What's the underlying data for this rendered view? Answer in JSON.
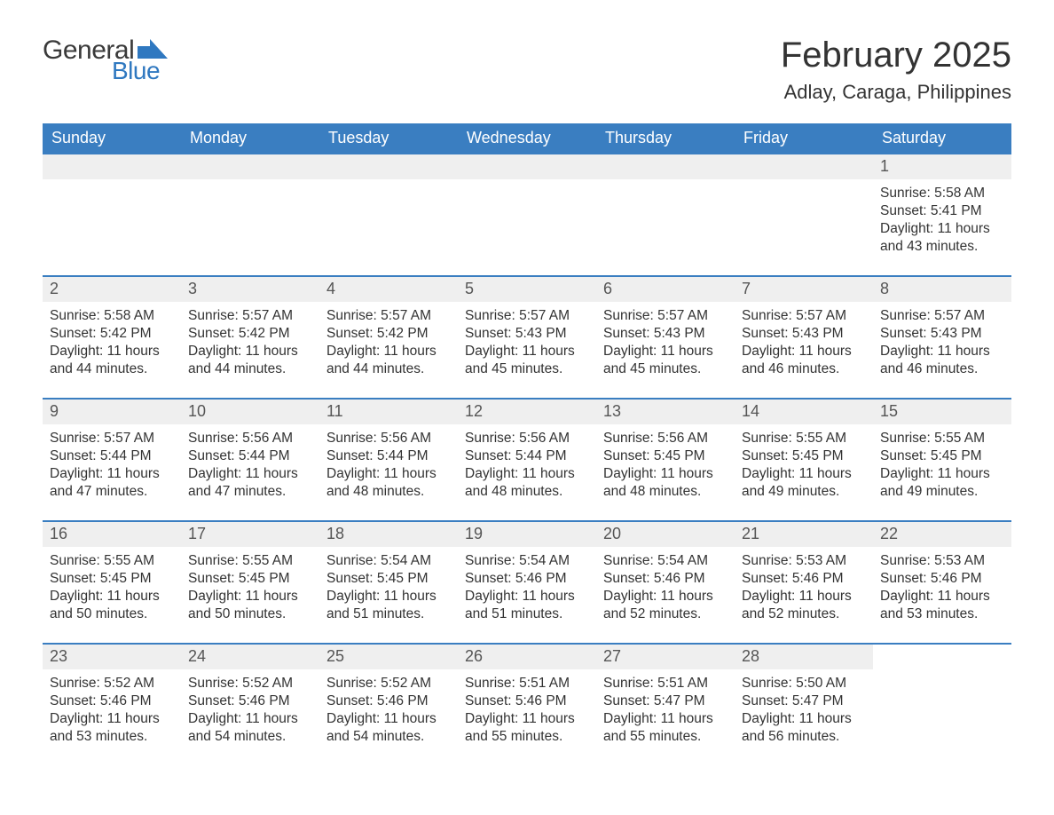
{
  "logo": {
    "text_general": "General",
    "text_blue": "Blue",
    "shape_color": "#2f78c0",
    "text_general_color": "#3a3a3a"
  },
  "header": {
    "month_title": "February 2025",
    "location": "Adlay, Caraga, Philippines"
  },
  "colors": {
    "header_bg": "#3a7ec1",
    "header_text": "#ffffff",
    "daynum_bg": "#efefef",
    "row_border": "#3a7ec1",
    "body_text": "#333333",
    "background": "#ffffff"
  },
  "typography": {
    "title_fontsize": 40,
    "location_fontsize": 22,
    "weekday_fontsize": 18,
    "daynum_fontsize": 18,
    "content_fontsize": 15.5,
    "font_family": "Arial"
  },
  "calendar": {
    "type": "table",
    "weekdays": [
      "Sunday",
      "Monday",
      "Tuesday",
      "Wednesday",
      "Thursday",
      "Friday",
      "Saturday"
    ],
    "weeks": [
      [
        {
          "empty": true
        },
        {
          "empty": true
        },
        {
          "empty": true
        },
        {
          "empty": true
        },
        {
          "empty": true
        },
        {
          "empty": true
        },
        {
          "day": "1",
          "sunrise": "Sunrise: 5:58 AM",
          "sunset": "Sunset: 5:41 PM",
          "daylight1": "Daylight: 11 hours",
          "daylight2": "and 43 minutes."
        }
      ],
      [
        {
          "day": "2",
          "sunrise": "Sunrise: 5:58 AM",
          "sunset": "Sunset: 5:42 PM",
          "daylight1": "Daylight: 11 hours",
          "daylight2": "and 44 minutes."
        },
        {
          "day": "3",
          "sunrise": "Sunrise: 5:57 AM",
          "sunset": "Sunset: 5:42 PM",
          "daylight1": "Daylight: 11 hours",
          "daylight2": "and 44 minutes."
        },
        {
          "day": "4",
          "sunrise": "Sunrise: 5:57 AM",
          "sunset": "Sunset: 5:42 PM",
          "daylight1": "Daylight: 11 hours",
          "daylight2": "and 44 minutes."
        },
        {
          "day": "5",
          "sunrise": "Sunrise: 5:57 AM",
          "sunset": "Sunset: 5:43 PM",
          "daylight1": "Daylight: 11 hours",
          "daylight2": "and 45 minutes."
        },
        {
          "day": "6",
          "sunrise": "Sunrise: 5:57 AM",
          "sunset": "Sunset: 5:43 PM",
          "daylight1": "Daylight: 11 hours",
          "daylight2": "and 45 minutes."
        },
        {
          "day": "7",
          "sunrise": "Sunrise: 5:57 AM",
          "sunset": "Sunset: 5:43 PM",
          "daylight1": "Daylight: 11 hours",
          "daylight2": "and 46 minutes."
        },
        {
          "day": "8",
          "sunrise": "Sunrise: 5:57 AM",
          "sunset": "Sunset: 5:43 PM",
          "daylight1": "Daylight: 11 hours",
          "daylight2": "and 46 minutes."
        }
      ],
      [
        {
          "day": "9",
          "sunrise": "Sunrise: 5:57 AM",
          "sunset": "Sunset: 5:44 PM",
          "daylight1": "Daylight: 11 hours",
          "daylight2": "and 47 minutes."
        },
        {
          "day": "10",
          "sunrise": "Sunrise: 5:56 AM",
          "sunset": "Sunset: 5:44 PM",
          "daylight1": "Daylight: 11 hours",
          "daylight2": "and 47 minutes."
        },
        {
          "day": "11",
          "sunrise": "Sunrise: 5:56 AM",
          "sunset": "Sunset: 5:44 PM",
          "daylight1": "Daylight: 11 hours",
          "daylight2": "and 48 minutes."
        },
        {
          "day": "12",
          "sunrise": "Sunrise: 5:56 AM",
          "sunset": "Sunset: 5:44 PM",
          "daylight1": "Daylight: 11 hours",
          "daylight2": "and 48 minutes."
        },
        {
          "day": "13",
          "sunrise": "Sunrise: 5:56 AM",
          "sunset": "Sunset: 5:45 PM",
          "daylight1": "Daylight: 11 hours",
          "daylight2": "and 48 minutes."
        },
        {
          "day": "14",
          "sunrise": "Sunrise: 5:55 AM",
          "sunset": "Sunset: 5:45 PM",
          "daylight1": "Daylight: 11 hours",
          "daylight2": "and 49 minutes."
        },
        {
          "day": "15",
          "sunrise": "Sunrise: 5:55 AM",
          "sunset": "Sunset: 5:45 PM",
          "daylight1": "Daylight: 11 hours",
          "daylight2": "and 49 minutes."
        }
      ],
      [
        {
          "day": "16",
          "sunrise": "Sunrise: 5:55 AM",
          "sunset": "Sunset: 5:45 PM",
          "daylight1": "Daylight: 11 hours",
          "daylight2": "and 50 minutes."
        },
        {
          "day": "17",
          "sunrise": "Sunrise: 5:55 AM",
          "sunset": "Sunset: 5:45 PM",
          "daylight1": "Daylight: 11 hours",
          "daylight2": "and 50 minutes."
        },
        {
          "day": "18",
          "sunrise": "Sunrise: 5:54 AM",
          "sunset": "Sunset: 5:45 PM",
          "daylight1": "Daylight: 11 hours",
          "daylight2": "and 51 minutes."
        },
        {
          "day": "19",
          "sunrise": "Sunrise: 5:54 AM",
          "sunset": "Sunset: 5:46 PM",
          "daylight1": "Daylight: 11 hours",
          "daylight2": "and 51 minutes."
        },
        {
          "day": "20",
          "sunrise": "Sunrise: 5:54 AM",
          "sunset": "Sunset: 5:46 PM",
          "daylight1": "Daylight: 11 hours",
          "daylight2": "and 52 minutes."
        },
        {
          "day": "21",
          "sunrise": "Sunrise: 5:53 AM",
          "sunset": "Sunset: 5:46 PM",
          "daylight1": "Daylight: 11 hours",
          "daylight2": "and 52 minutes."
        },
        {
          "day": "22",
          "sunrise": "Sunrise: 5:53 AM",
          "sunset": "Sunset: 5:46 PM",
          "daylight1": "Daylight: 11 hours",
          "daylight2": "and 53 minutes."
        }
      ],
      [
        {
          "day": "23",
          "sunrise": "Sunrise: 5:52 AM",
          "sunset": "Sunset: 5:46 PM",
          "daylight1": "Daylight: 11 hours",
          "daylight2": "and 53 minutes."
        },
        {
          "day": "24",
          "sunrise": "Sunrise: 5:52 AM",
          "sunset": "Sunset: 5:46 PM",
          "daylight1": "Daylight: 11 hours",
          "daylight2": "and 54 minutes."
        },
        {
          "day": "25",
          "sunrise": "Sunrise: 5:52 AM",
          "sunset": "Sunset: 5:46 PM",
          "daylight1": "Daylight: 11 hours",
          "daylight2": "and 54 minutes."
        },
        {
          "day": "26",
          "sunrise": "Sunrise: 5:51 AM",
          "sunset": "Sunset: 5:46 PM",
          "daylight1": "Daylight: 11 hours",
          "daylight2": "and 55 minutes."
        },
        {
          "day": "27",
          "sunrise": "Sunrise: 5:51 AM",
          "sunset": "Sunset: 5:47 PM",
          "daylight1": "Daylight: 11 hours",
          "daylight2": "and 55 minutes."
        },
        {
          "day": "28",
          "sunrise": "Sunrise: 5:50 AM",
          "sunset": "Sunset: 5:47 PM",
          "daylight1": "Daylight: 11 hours",
          "daylight2": "and 56 minutes."
        },
        {
          "empty": true,
          "no_bar": true
        }
      ]
    ]
  }
}
